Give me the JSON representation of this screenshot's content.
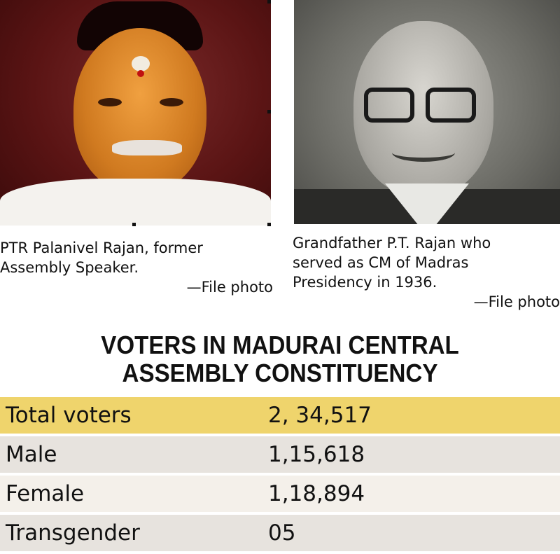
{
  "photos": [
    {
      "caption_lines": [
        "PTR Palanivel Rajan, former",
        "Assembly Speaker."
      ],
      "credit": "—File photo"
    },
    {
      "caption_lines": [
        "Grandfather P.T. Rajan who",
        "served as CM of Madras",
        "Presidency in 1936."
      ],
      "credit": "—File photo"
    }
  ],
  "heading": {
    "line1": "VOTERS IN MADURAI CENTRAL",
    "line2": "ASSEMBLY CONSTITUENCY"
  },
  "table": {
    "rows": [
      {
        "label": "Total voters",
        "value": "2, 34,517"
      },
      {
        "label": "Male",
        "value": "1,15,618"
      },
      {
        "label": "Female",
        "value": "1,18,894"
      },
      {
        "label": "Transgender",
        "value": "05"
      }
    ]
  },
  "colors": {
    "highlight_row": "#efd46c",
    "alt_row": "#e7e3de"
  }
}
